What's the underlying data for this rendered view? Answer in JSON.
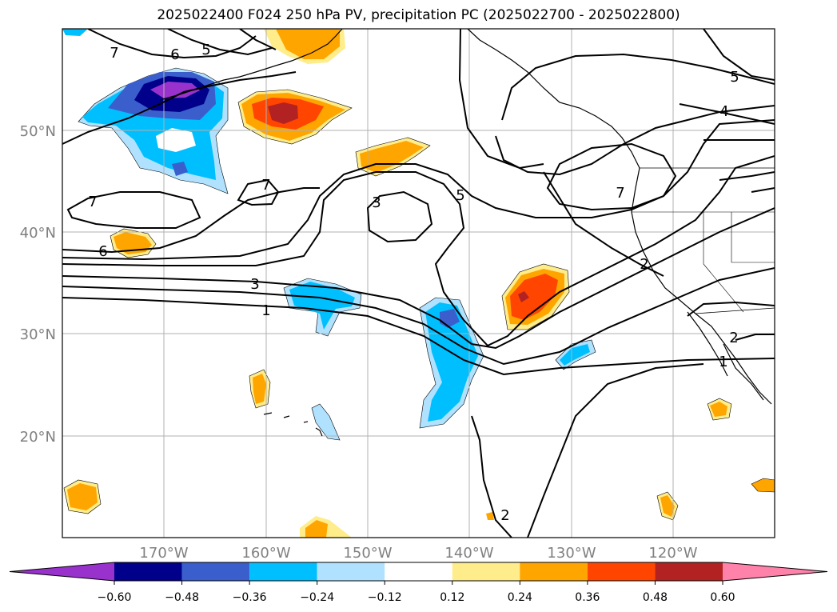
{
  "title": "2025022400 F024 250 hPa PV, precipitation PC (2025022700 - 2025022800)",
  "map": {
    "lon_range": [
      -180,
      -110
    ],
    "lat_range": [
      10,
      60
    ],
    "lat_labels": [
      "50°N",
      "40°N",
      "30°N",
      "20°N"
    ],
    "lon_labels": [
      "170°W",
      "160°W",
      "150°W",
      "140°W",
      "130°W",
      "120°W"
    ],
    "label_color": "#808080",
    "gridlines": true,
    "contour_labels": [
      "7",
      "6",
      "5",
      "5",
      "4",
      "7",
      "7",
      "7",
      "3",
      "5",
      "6",
      "3",
      "1",
      "2",
      "2",
      "1",
      "2"
    ]
  },
  "colorbar": {
    "ticks": [
      "−0.60",
      "−0.48",
      "−0.36",
      "−0.24",
      "−0.12",
      "0.12",
      "0.24",
      "0.36",
      "0.48",
      "0.60"
    ],
    "colors": [
      "#9932cc",
      "#00008b",
      "#3a5fcd",
      "#00bfff",
      "#b0e2ff",
      "#ffffff",
      "#ffec8b",
      "#ffa500",
      "#ff4500",
      "#b22222",
      "#ff82ab"
    ],
    "extend": "both"
  }
}
